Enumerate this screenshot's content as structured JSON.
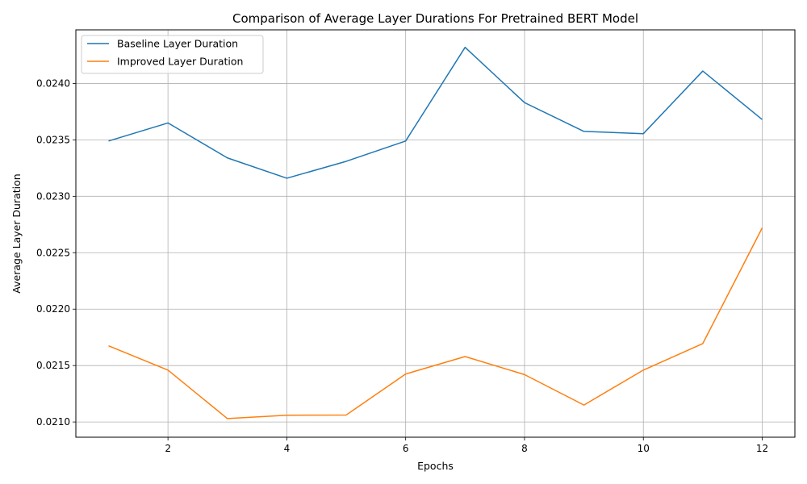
{
  "chart_data": {
    "type": "line",
    "title": "Comparison of Average Layer Durations For Pretrained BERT Model",
    "xlabel": "Epochs",
    "ylabel": "Average Layer Duration",
    "x": [
      1,
      2,
      3,
      4,
      5,
      6,
      7,
      8,
      9,
      10,
      11,
      12
    ],
    "series": [
      {
        "name": "Baseline Layer Duration",
        "color": "#1f77b4",
        "values": [
          0.02349,
          0.02365,
          0.02334,
          0.02316,
          0.02331,
          0.02349,
          0.02432,
          0.02383,
          0.023575,
          0.023555,
          0.02411,
          0.02368
        ]
      },
      {
        "name": "Improved Layer Duration",
        "color": "#ff7f0e",
        "values": [
          0.021675,
          0.02146,
          0.02103,
          0.02106,
          0.021062,
          0.021425,
          0.02158,
          0.02142,
          0.02115,
          0.02146,
          0.021695,
          0.02272
        ]
      }
    ],
    "xlim": [
      0.45,
      12.55
    ],
    "ylim": [
      0.020865,
      0.024475
    ],
    "xticks": [
      2,
      4,
      6,
      8,
      10,
      12
    ],
    "xtick_labels": [
      "2",
      "4",
      "6",
      "8",
      "10",
      "12"
    ],
    "yticks": [
      0.021,
      0.0215,
      0.022,
      0.0225,
      0.023,
      0.0235,
      0.024
    ],
    "ytick_labels": [
      "0.0210",
      "0.0215",
      "0.0220",
      "0.0225",
      "0.0230",
      "0.0235",
      "0.0240"
    ],
    "grid": true,
    "legend_position": "upper-left"
  }
}
